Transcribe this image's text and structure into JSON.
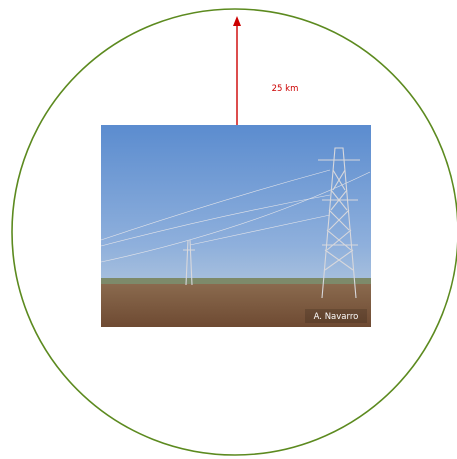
{
  "distance_label": "25 km",
  "photo": {
    "credit": "A. Navarro"
  }
}
